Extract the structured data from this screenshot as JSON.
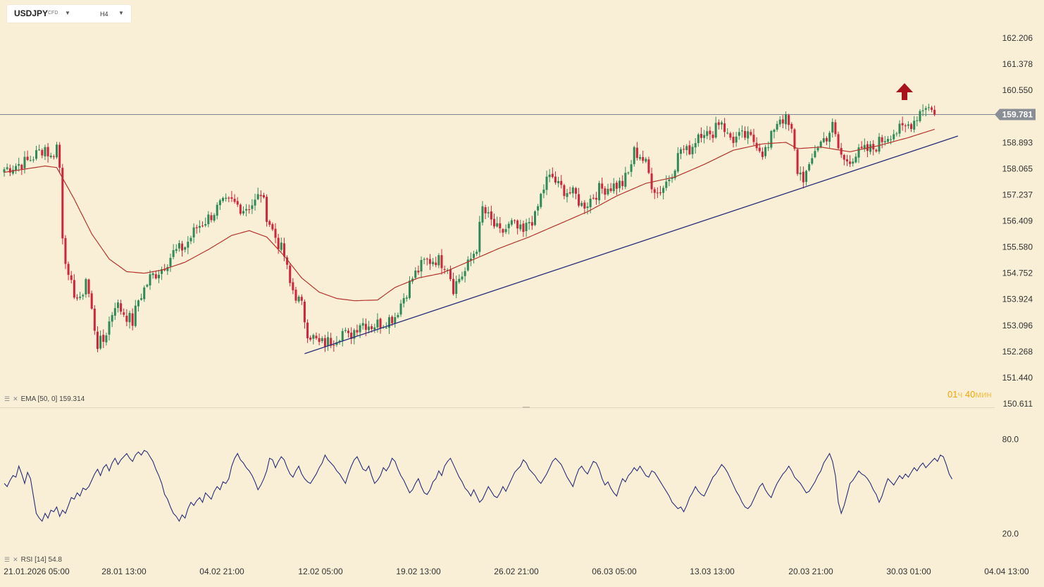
{
  "header": {
    "symbol": "USDJPY",
    "symbol_type": "CFD",
    "timeframe": "H4",
    "caret": "▼",
    "caret2": "▼"
  },
  "indicators": {
    "ema_label": "EMA [50, 0] 159.314",
    "rsi_label": "RSI [14] 54.8",
    "icons": [
      "menu-icon",
      "close-icon"
    ]
  },
  "timer": {
    "hours": "01",
    "hours_unit": "ч",
    "minutes": "40",
    "minutes_unit": "мин"
  },
  "colors": {
    "background": "#f8efd6",
    "bull": "#2e8b57",
    "bear": "#d0243a",
    "ema": "#b5342e",
    "trendline": "#2a2d7a",
    "rsi": "#2a2d7a",
    "price_line": "#7d8591",
    "price_badge": "#8a8f96",
    "arrow": "#a8141b"
  },
  "chart_data": [
    {
      "type": "candlestick",
      "symbol": "USDJPY",
      "timeframe": "H4",
      "y_ticks": [
        "162.206",
        "161.378",
        "160.550",
        "158.893",
        "158.065",
        "157.237",
        "156.409",
        "155.580",
        "154.752",
        "153.924",
        "153.096",
        "152.268",
        "151.440",
        "150.611"
      ],
      "ylim": [
        150.611,
        162.206
      ],
      "last_price": "159.781",
      "x_ticks": [
        "21.01.2026 05:00",
        "28.01 13:00",
        "04.02 21:00",
        "12.02 05:00",
        "19.02 13:00",
        "26.02 21:00",
        "06.03 05:00",
        "13.03 13:00",
        "20.03 21:00",
        "30.03 01:00",
        "04.04 13:00"
      ],
      "close_path": [
        [
          0,
          158.05
        ],
        [
          8,
          158.3
        ],
        [
          14,
          158.75
        ],
        [
          16,
          158.4
        ],
        [
          18,
          158.8
        ],
        [
          19,
          158.1
        ],
        [
          20,
          156.0
        ],
        [
          22,
          154.5
        ],
        [
          26,
          153.8
        ],
        [
          28,
          154.6
        ],
        [
          32,
          152.5
        ],
        [
          34,
          152.6
        ],
        [
          38,
          153.8
        ],
        [
          42,
          153.4
        ],
        [
          44,
          153.2
        ],
        [
          46,
          153.9
        ],
        [
          50,
          154.6
        ],
        [
          54,
          154.9
        ],
        [
          58,
          155.4
        ],
        [
          62,
          155.6
        ],
        [
          66,
          156.2
        ],
        [
          70,
          156.5
        ],
        [
          74,
          156.9
        ],
        [
          78,
          157.0
        ],
        [
          82,
          156.8
        ],
        [
          86,
          157.0
        ],
        [
          88,
          157.3
        ],
        [
          90,
          156.6
        ],
        [
          92,
          156.1
        ],
        [
          96,
          155.3
        ],
        [
          98,
          154.4
        ],
        [
          102,
          153.7
        ],
        [
          104,
          152.9
        ],
        [
          108,
          152.5
        ],
        [
          112,
          152.6
        ],
        [
          116,
          152.9
        ],
        [
          118,
          152.7
        ],
        [
          122,
          153.2
        ],
        [
          126,
          153.1
        ],
        [
          130,
          153.2
        ],
        [
          134,
          153.4
        ],
        [
          136,
          153.8
        ],
        [
          140,
          154.6
        ],
        [
          144,
          155.1
        ],
        [
          148,
          155.2
        ],
        [
          152,
          155.0
        ],
        [
          154,
          154.3
        ],
        [
          156,
          154.6
        ],
        [
          158,
          154.8
        ],
        [
          160,
          155.2
        ],
        [
          162,
          155.6
        ],
        [
          164,
          156.8
        ],
        [
          166,
          156.5
        ],
        [
          170,
          156.0
        ],
        [
          174,
          156.3
        ],
        [
          178,
          156.0
        ],
        [
          180,
          156.4
        ],
        [
          182,
          156.5
        ],
        [
          184,
          157.2
        ],
        [
          186,
          157.7
        ],
        [
          188,
          157.8
        ],
        [
          190,
          157.5
        ],
        [
          192,
          157.4
        ],
        [
          196,
          157.2
        ],
        [
          198,
          156.9
        ],
        [
          200,
          157.0
        ],
        [
          204,
          157.4
        ],
        [
          208,
          157.5
        ],
        [
          212,
          157.6
        ],
        [
          214,
          157.9
        ],
        [
          216,
          158.6
        ],
        [
          218,
          158.5
        ],
        [
          220,
          158.2
        ],
        [
          222,
          157.6
        ],
        [
          224,
          157.3
        ],
        [
          226,
          157.5
        ],
        [
          228,
          157.8
        ],
        [
          230,
          158.2
        ],
        [
          232,
          158.7
        ],
        [
          234,
          158.6
        ],
        [
          236,
          158.8
        ],
        [
          238,
          159.2
        ],
        [
          240,
          159.3
        ],
        [
          242,
          159.0
        ],
        [
          244,
          159.5
        ],
        [
          246,
          159.6
        ],
        [
          248,
          159.1
        ],
        [
          250,
          159.0
        ],
        [
          254,
          159.1
        ],
        [
          258,
          158.9
        ],
        [
          260,
          158.6
        ],
        [
          262,
          158.7
        ],
        [
          264,
          159.4
        ],
        [
          266,
          159.7
        ],
        [
          268,
          159.6
        ],
        [
          270,
          159.2
        ],
        [
          272,
          158.0
        ],
        [
          274,
          157.8
        ],
        [
          276,
          158.0
        ],
        [
          278,
          158.7
        ],
        [
          282,
          159.1
        ],
        [
          284,
          159.4
        ],
        [
          286,
          158.7
        ],
        [
          288,
          158.3
        ],
        [
          290,
          158.4
        ],
        [
          294,
          158.6
        ],
        [
          298,
          158.7
        ],
        [
          300,
          158.9
        ],
        [
          304,
          159.2
        ],
        [
          308,
          159.3
        ],
        [
          312,
          159.6
        ],
        [
          314,
          159.9
        ],
        [
          316,
          160.1
        ],
        [
          318,
          159.9
        ],
        [
          319,
          159.781
        ]
      ],
      "ema": {
        "label": "EMA [50, 0] 159.314",
        "path": [
          [
            0,
            157.95
          ],
          [
            14,
            158.15
          ],
          [
            18,
            158.1
          ],
          [
            24,
            157.1
          ],
          [
            30,
            156.0
          ],
          [
            36,
            155.2
          ],
          [
            42,
            154.8
          ],
          [
            48,
            154.75
          ],
          [
            54,
            154.85
          ],
          [
            62,
            155.1
          ],
          [
            70,
            155.5
          ],
          [
            78,
            155.95
          ],
          [
            84,
            156.1
          ],
          [
            90,
            155.9
          ],
          [
            96,
            155.3
          ],
          [
            102,
            154.6
          ],
          [
            108,
            154.15
          ],
          [
            114,
            153.95
          ],
          [
            120,
            153.88
          ],
          [
            128,
            153.9
          ],
          [
            134,
            154.3
          ],
          [
            142,
            154.6
          ],
          [
            150,
            154.75
          ],
          [
            160,
            155.15
          ],
          [
            170,
            155.55
          ],
          [
            180,
            155.9
          ],
          [
            190,
            156.3
          ],
          [
            200,
            156.7
          ],
          [
            210,
            157.2
          ],
          [
            220,
            157.6
          ],
          [
            230,
            157.8
          ],
          [
            240,
            158.2
          ],
          [
            250,
            158.65
          ],
          [
            260,
            158.85
          ],
          [
            268,
            158.9
          ],
          [
            272,
            158.7
          ],
          [
            280,
            158.75
          ],
          [
            290,
            158.6
          ],
          [
            300,
            158.8
          ],
          [
            310,
            159.05
          ],
          [
            319,
            159.314
          ]
        ]
      },
      "trendline": [
        [
          103,
          152.2
        ],
        [
          327,
          159.1
        ]
      ],
      "annotation": "up-arrow"
    },
    {
      "type": "line",
      "name": "RSI [14]",
      "last_value": 54.8,
      "y_ticks": [
        "80.0",
        "20.0"
      ],
      "ylim": [
        20.0,
        80.0
      ],
      "values": [
        52,
        50,
        54,
        57,
        56,
        63,
        58,
        52,
        59,
        55,
        44,
        33,
        30,
        28,
        33,
        30,
        35,
        34,
        37,
        31,
        35,
        33,
        38,
        43,
        42,
        46,
        44,
        49,
        48,
        50,
        54,
        58,
        61,
        57,
        62,
        64,
        60,
        65,
        68,
        64,
        67,
        69,
        71,
        68,
        66,
        70,
        72,
        70,
        73,
        72,
        69,
        66,
        61,
        57,
        52,
        45,
        42,
        37,
        33,
        31,
        28,
        32,
        30,
        36,
        40,
        38,
        41,
        43,
        40,
        46,
        44,
        42,
        47,
        50,
        48,
        53,
        52,
        55,
        63,
        68,
        71,
        67,
        65,
        62,
        60,
        57,
        53,
        48,
        51,
        55,
        60,
        68,
        67,
        62,
        66,
        69,
        67,
        62,
        58,
        56,
        60,
        63,
        58,
        55,
        53,
        52,
        55,
        58,
        62,
        65,
        70,
        67,
        65,
        63,
        60,
        58,
        55,
        52,
        58,
        63,
        67,
        69,
        65,
        61,
        60,
        63,
        57,
        52,
        54,
        57,
        62,
        60,
        63,
        68,
        66,
        61,
        57,
        54,
        50,
        46,
        48,
        52,
        55,
        50,
        46,
        45,
        48,
        53,
        55,
        60,
        57,
        63,
        66,
        68,
        64,
        60,
        56,
        53,
        49,
        47,
        44,
        48,
        44,
        40,
        42,
        46,
        50,
        47,
        44,
        43,
        46,
        50,
        47,
        51,
        55,
        59,
        61,
        63,
        67,
        65,
        61,
        59,
        57,
        54,
        52,
        55,
        58,
        62,
        66,
        68,
        66,
        64,
        60,
        56,
        53,
        50,
        56,
        61,
        63,
        60,
        58,
        62,
        66,
        65,
        61,
        55,
        51,
        53,
        49,
        46,
        44,
        50,
        55,
        53,
        57,
        59,
        62,
        60,
        63,
        60,
        57,
        56,
        60,
        59,
        56,
        53,
        50,
        47,
        44,
        40,
        38,
        36,
        37,
        34,
        38,
        43,
        46,
        50,
        47,
        45,
        44,
        48,
        52,
        56,
        58,
        61,
        64,
        62,
        59,
        55,
        51,
        47,
        44,
        40,
        37,
        36,
        38,
        42,
        46,
        50,
        52,
        48,
        45,
        43,
        48,
        52,
        55,
        58,
        60,
        63,
        60,
        56,
        54,
        52,
        49,
        46,
        47,
        50,
        53,
        57,
        60,
        65,
        68,
        71,
        66,
        57,
        40,
        33,
        38,
        45,
        52,
        54,
        57,
        60,
        58,
        57,
        55,
        52,
        48,
        45,
        40,
        44,
        50,
        55,
        53,
        51,
        54,
        57,
        55,
        58,
        56,
        59,
        62,
        60,
        63,
        65,
        62,
        64,
        66,
        68,
        66,
        70,
        69,
        64,
        58,
        54.8
      ]
    }
  ]
}
